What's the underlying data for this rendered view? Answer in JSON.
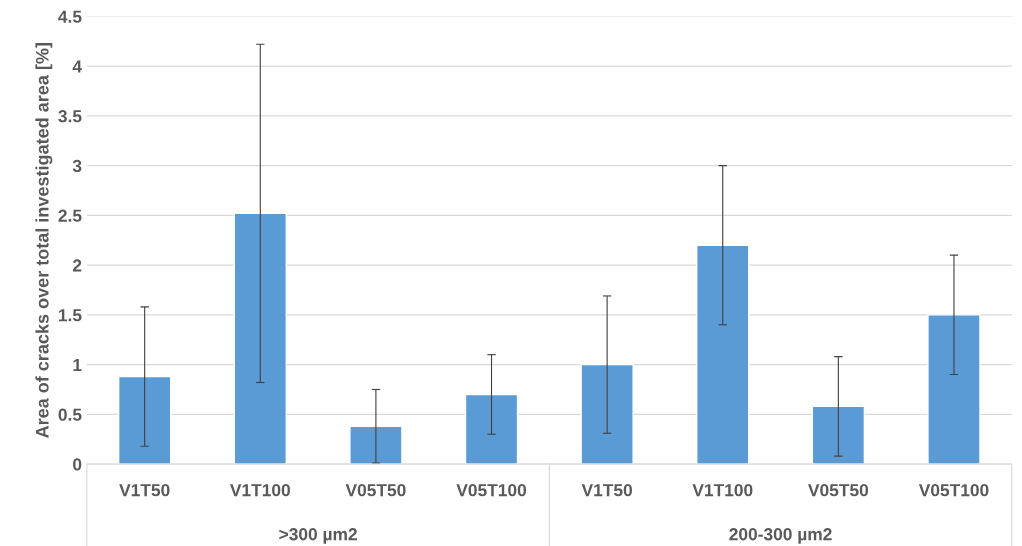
{
  "chart_data": {
    "type": "bar",
    "ylabel": "Area of cracks over total investigated area [%]",
    "categories": [
      "V1T50",
      "V1T100",
      "V05T50",
      "V05T100",
      "V1T50",
      "V1T100",
      "V05T50",
      "V05T100"
    ],
    "values": [
      0.88,
      2.52,
      0.38,
      0.7,
      1.0,
      2.2,
      0.58,
      1.5
    ],
    "errors": [
      0.7,
      1.7,
      0.37,
      0.4,
      0.69,
      0.8,
      0.5,
      0.6
    ],
    "color": "#5b9bd5",
    "ylim": [
      0,
      4.5
    ],
    "yticks": [
      0,
      0.5,
      1,
      1.5,
      2,
      2.5,
      3,
      3.5,
      4,
      4.5
    ],
    "grid": "y",
    "annotations": [
      ">300 µm2",
      "200-300 µm2"
    ]
  }
}
